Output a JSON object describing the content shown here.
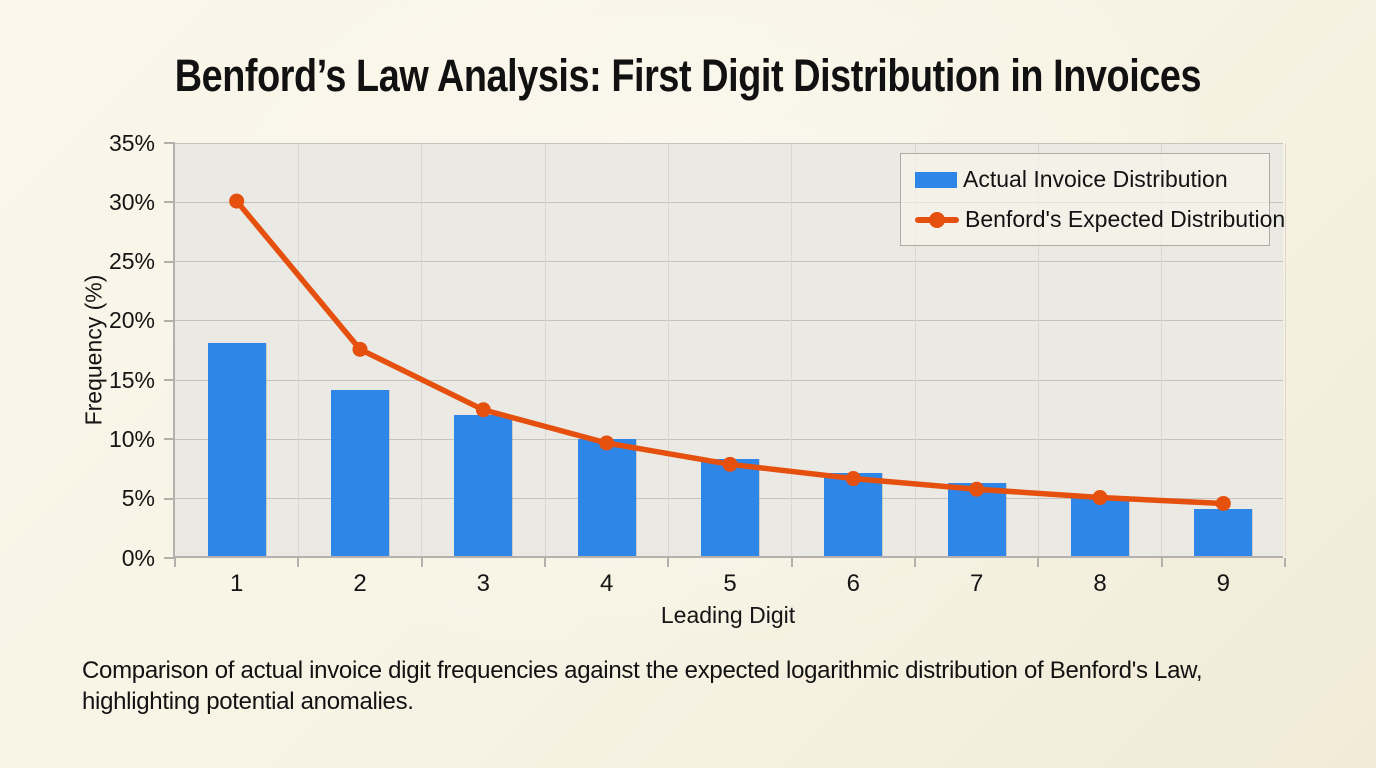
{
  "chart_data": {
    "type": "bar",
    "title": "Benford’s Law Analysis: First Digit Distribution in Invoices",
    "xlabel": "Leading Digit",
    "ylabel": "Frequency (%)",
    "categories": [
      "1",
      "2",
      "3",
      "4",
      "5",
      "6",
      "7",
      "8",
      "9"
    ],
    "series": [
      {
        "name": "Actual Invoice Distribution",
        "kind": "bar",
        "color": "#2e86e8",
        "values": [
          18.0,
          14.0,
          11.9,
          9.9,
          8.2,
          7.0,
          6.2,
          5.0,
          4.0
        ]
      },
      {
        "name": "Benford's Expected Distribution",
        "kind": "line",
        "color": "#e6500e",
        "values": [
          30.1,
          17.6,
          12.5,
          9.7,
          7.9,
          6.7,
          5.8,
          5.1,
          4.6
        ]
      }
    ],
    "ylim": [
      0,
      35
    ],
    "ytick_step": 5,
    "ytick_suffix": "%",
    "grid": true,
    "legend_position": "top-right"
  },
  "caption": "Comparison of actual invoice digit frequencies against the expected logarithmic distribution of Benford's Law, highlighting potential anomalies.",
  "colors": {
    "background": "#f8f4e6",
    "plot_background": "#ebe9e3",
    "gridline": "#c5c3be",
    "axis": "#b3b1ab",
    "bar_blue": "#2e86e8",
    "line_orange": "#e6500e",
    "text": "#141414"
  }
}
